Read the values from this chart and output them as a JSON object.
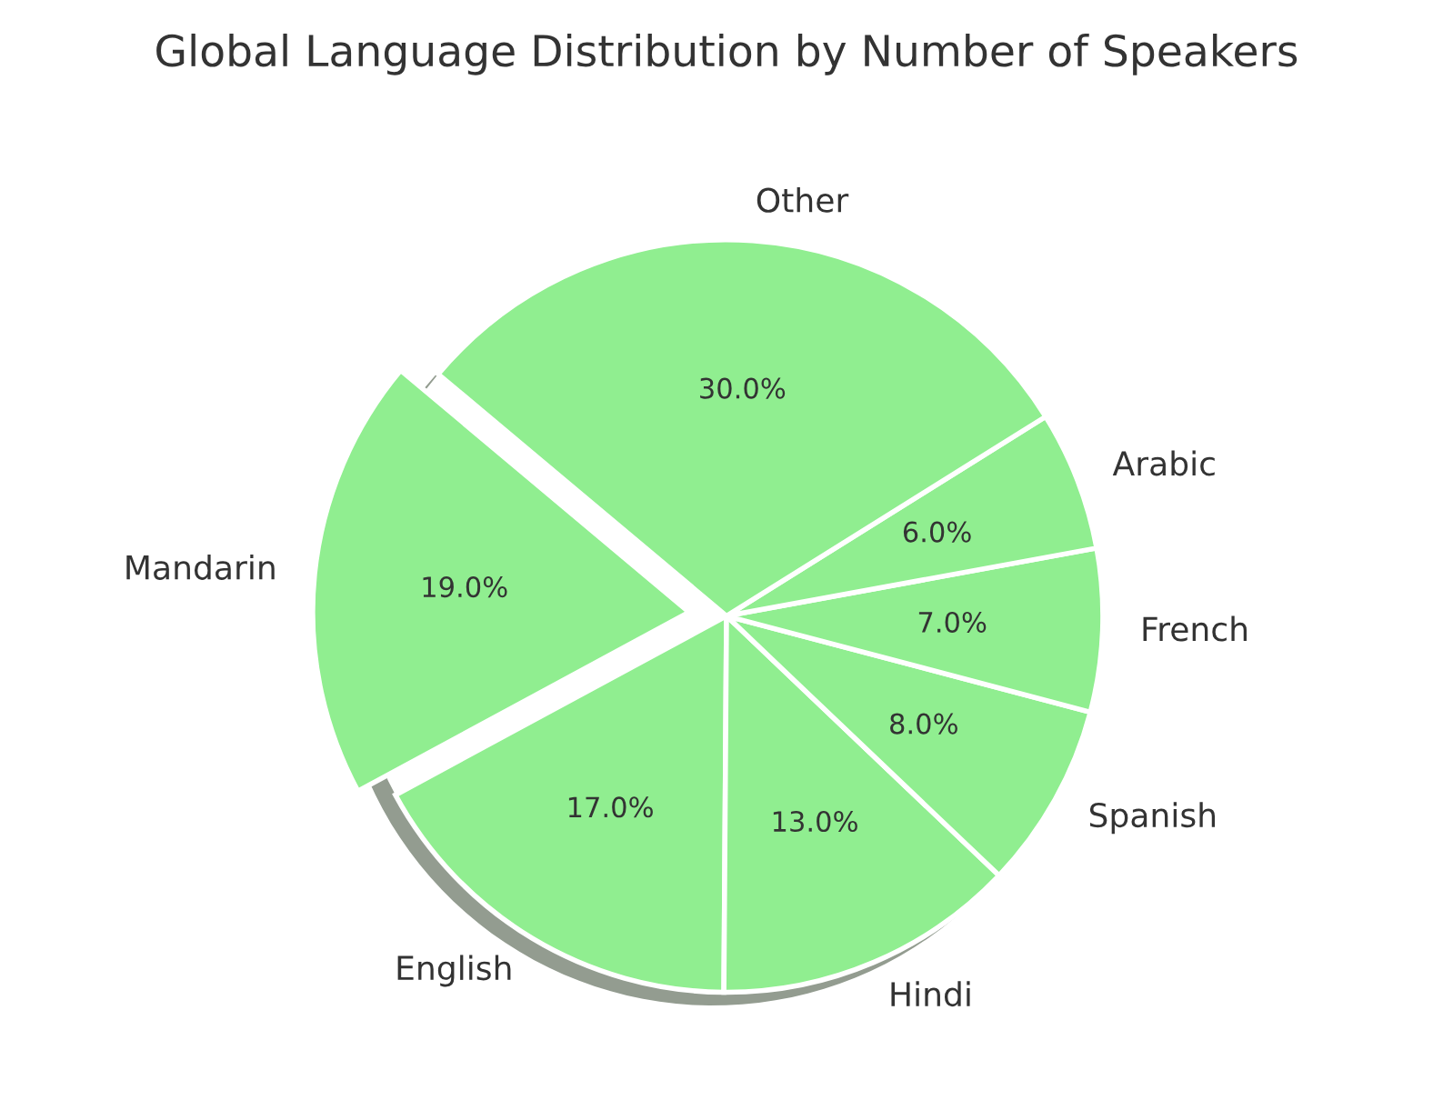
{
  "chart_data": {
    "type": "pie",
    "title": "Global Language Distribution by Number of Speakers",
    "categories": [
      "Mandarin",
      "English",
      "Hindi",
      "Spanish",
      "French",
      "Arabic",
      "Other"
    ],
    "values": [
      19,
      17,
      13,
      8,
      7,
      6,
      30
    ],
    "colors": [
      "#90ee90",
      "#90ee90",
      "#90ee90",
      "#90ee90",
      "#90ee90",
      "#90ee90",
      "#90ee90"
    ],
    "value_labels": [
      "19.0%",
      "17.0%",
      "13.0%",
      "8.0%",
      "7.0%",
      "6.0%",
      "30.0%"
    ]
  }
}
